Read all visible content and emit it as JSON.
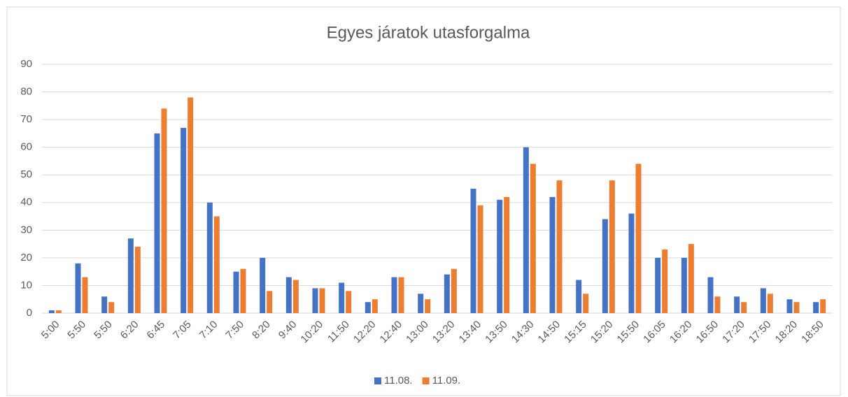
{
  "chart_data": {
    "type": "bar",
    "title": "Egyes járatok utasforgalma",
    "categories": [
      "5:00",
      "5:50",
      "5:50",
      "6:20",
      "6:45",
      "7:05",
      "7:10",
      "7:50",
      "8:20",
      "9:40",
      "10:20",
      "11:50",
      "12:20",
      "12:40",
      "13:00",
      "13:20",
      "13:40",
      "13:50",
      "14:30",
      "14:50",
      "15:15",
      "15:20",
      "15:50",
      "16:05",
      "16:20",
      "16:50",
      "17:20",
      "17:50",
      "18:20",
      "18:50"
    ],
    "series": [
      {
        "name": "11.08.",
        "color": "#4472c4",
        "values": [
          1,
          18,
          6,
          27,
          65,
          67,
          40,
          15,
          20,
          13,
          9,
          11,
          4,
          13,
          7,
          14,
          45,
          41,
          60,
          42,
          12,
          34,
          36,
          20,
          20,
          13,
          6,
          9,
          5,
          4
        ]
      },
      {
        "name": "11.09.",
        "color": "#ed7d31",
        "values": [
          1,
          13,
          4,
          24,
          74,
          78,
          35,
          16,
          8,
          12,
          9,
          8,
          5,
          13,
          5,
          16,
          39,
          42,
          54,
          48,
          7,
          48,
          54,
          23,
          25,
          6,
          4,
          7,
          4,
          5
        ]
      }
    ],
    "ylim": [
      0,
      90
    ],
    "yticks": [
      0,
      10,
      20,
      30,
      40,
      50,
      60,
      70,
      80,
      90
    ],
    "grid": true,
    "legend": "bottom"
  }
}
